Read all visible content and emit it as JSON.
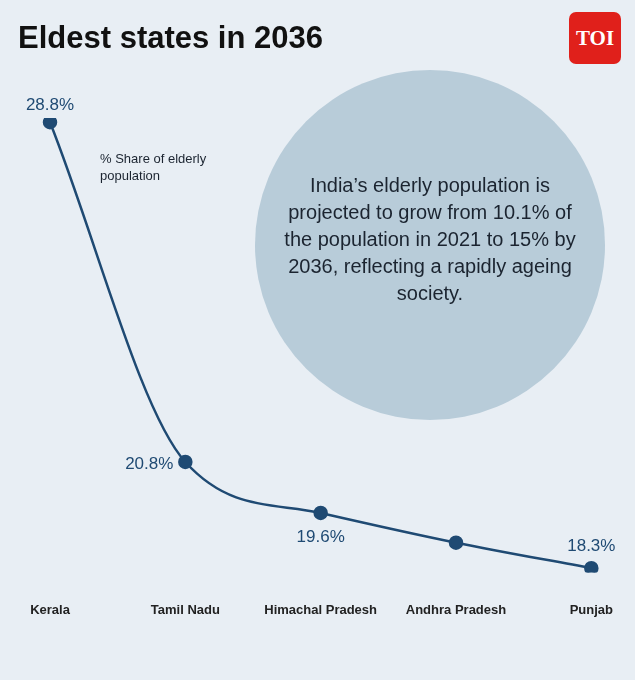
{
  "chart_data": {
    "type": "line",
    "title": "Eldest states in 2036",
    "source": "TOI",
    "annotations": [
      "% Share of elderly population",
      "India’s elderly population is projected to grow from 10.1% of the population in 2021 to 15% by 2036, reflecting a rapidly ageing society."
    ],
    "categories": [
      "Kerala",
      "Tamil Nadu",
      "Himachal Pradesh",
      "Andhra Pradesh",
      "Punjab"
    ],
    "values": [
      28.8,
      20.8,
      19.6,
      18.9,
      18.3
    ],
    "value_labels": [
      "28.8%",
      "20.8%",
      "19.6%",
      null,
      "18.3%"
    ],
    "color": "#1f4a73",
    "marker": "circle",
    "line_style": "solid",
    "ylim": [
      18.2,
      28.9
    ],
    "grid": false,
    "data_labels": true,
    "tick_labels": "x"
  }
}
